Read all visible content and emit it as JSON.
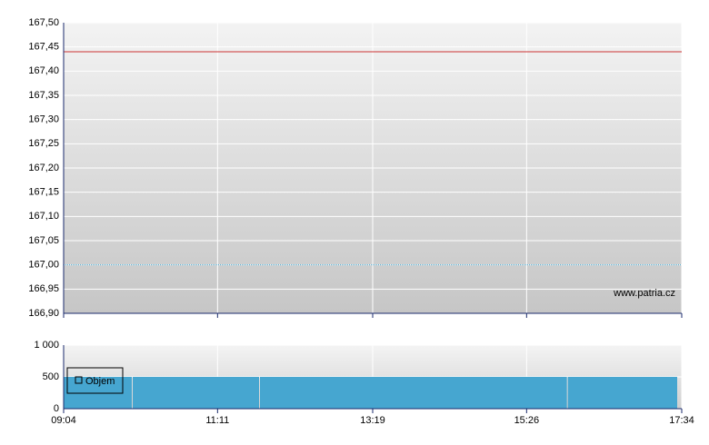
{
  "chart_data": [
    {
      "type": "line",
      "xlim": [
        544,
        1054
      ],
      "xticks": [
        544,
        671,
        799,
        926,
        1054
      ],
      "ylim": [
        166.9,
        167.5
      ],
      "yticks": [
        {
          "value": 166.9,
          "label": "166,90"
        },
        {
          "value": 166.95,
          "label": "166,95"
        },
        {
          "value": 167.0,
          "label": "167,00"
        },
        {
          "value": 167.05,
          "label": "167,05"
        },
        {
          "value": 167.1,
          "label": "167,10"
        },
        {
          "value": 167.15,
          "label": "167,15"
        },
        {
          "value": 167.2,
          "label": "167,20"
        },
        {
          "value": 167.25,
          "label": "167,25"
        },
        {
          "value": 167.3,
          "label": "167,30"
        },
        {
          "value": 167.35,
          "label": "167,35"
        },
        {
          "value": 167.4,
          "label": "167,40"
        },
        {
          "value": 167.45,
          "label": "167,45"
        },
        {
          "value": 167.5,
          "label": "167,50"
        }
      ],
      "grid": true,
      "series": [
        {
          "color": "#cc3333",
          "x": [
            544,
            1054
          ],
          "values": [
            167.44,
            167.44
          ],
          "dashed": false
        },
        {
          "color": "#46a6d0",
          "x": [
            544,
            1054
          ],
          "values": [
            167.0,
            167.0
          ],
          "dashed": true
        }
      ],
      "watermark": "www.patria.cz"
    },
    {
      "type": "histogram",
      "xlim": [
        544,
        1054
      ],
      "xticks": [
        {
          "value": 544,
          "label": "09:04"
        },
        {
          "value": 671,
          "label": "11:11"
        },
        {
          "value": 799,
          "label": "13:19"
        },
        {
          "value": 926,
          "label": "15:26"
        },
        {
          "value": 1054,
          "label": "17:34"
        }
      ],
      "ylim": [
        0,
        1000
      ],
      "yticks": [
        0,
        500,
        {
          "value": 1000,
          "label": "1 000"
        }
      ],
      "grid": true,
      "bins": [
        544,
        601,
        706,
        960,
        1051
      ],
      "series": [
        {
          "name": "Objem",
          "color": "#46a6d0",
          "values": [
            500,
            500,
            500,
            500
          ]
        }
      ],
      "legend": "upper-left"
    }
  ]
}
